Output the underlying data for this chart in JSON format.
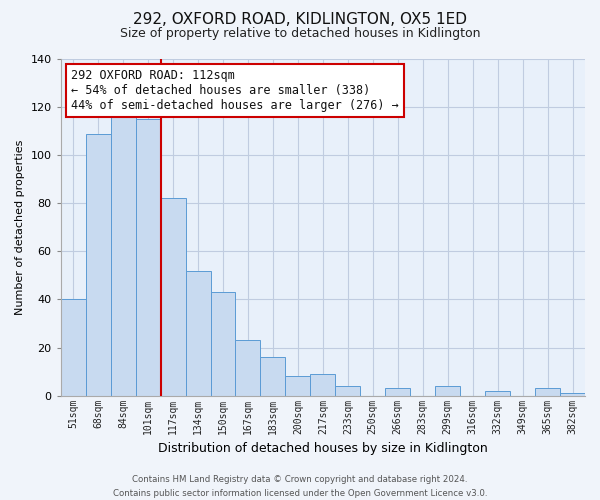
{
  "title": "292, OXFORD ROAD, KIDLINGTON, OX5 1ED",
  "subtitle": "Size of property relative to detached houses in Kidlington",
  "xlabel": "Distribution of detached houses by size in Kidlington",
  "ylabel": "Number of detached properties",
  "categories": [
    "51sqm",
    "68sqm",
    "84sqm",
    "101sqm",
    "117sqm",
    "134sqm",
    "150sqm",
    "167sqm",
    "183sqm",
    "200sqm",
    "217sqm",
    "233sqm",
    "250sqm",
    "266sqm",
    "283sqm",
    "299sqm",
    "316sqm",
    "332sqm",
    "349sqm",
    "365sqm",
    "382sqm"
  ],
  "values": [
    40,
    109,
    117,
    115,
    82,
    52,
    43,
    23,
    16,
    8,
    9,
    4,
    0,
    3,
    0,
    4,
    0,
    2,
    0,
    3,
    1
  ],
  "bar_color": "#c8daf0",
  "bar_edge_color": "#5b9bd5",
  "vline_x_index": 4,
  "vline_color": "#cc0000",
  "annotation_line1": "292 OXFORD ROAD: 112sqm",
  "annotation_line2": "← 54% of detached houses are smaller (338)",
  "annotation_line3": "44% of semi-detached houses are larger (276) →",
  "annotation_box_color": "#ffffff",
  "annotation_box_edge": "#cc0000",
  "ylim": [
    0,
    140
  ],
  "yticks": [
    0,
    20,
    40,
    60,
    80,
    100,
    120,
    140
  ],
  "footer": "Contains HM Land Registry data © Crown copyright and database right 2024.\nContains public sector information licensed under the Open Government Licence v3.0.",
  "bg_color": "#f0f4fa",
  "plot_bg_color": "#e8f0fa",
  "grid_color": "#c0cce0"
}
